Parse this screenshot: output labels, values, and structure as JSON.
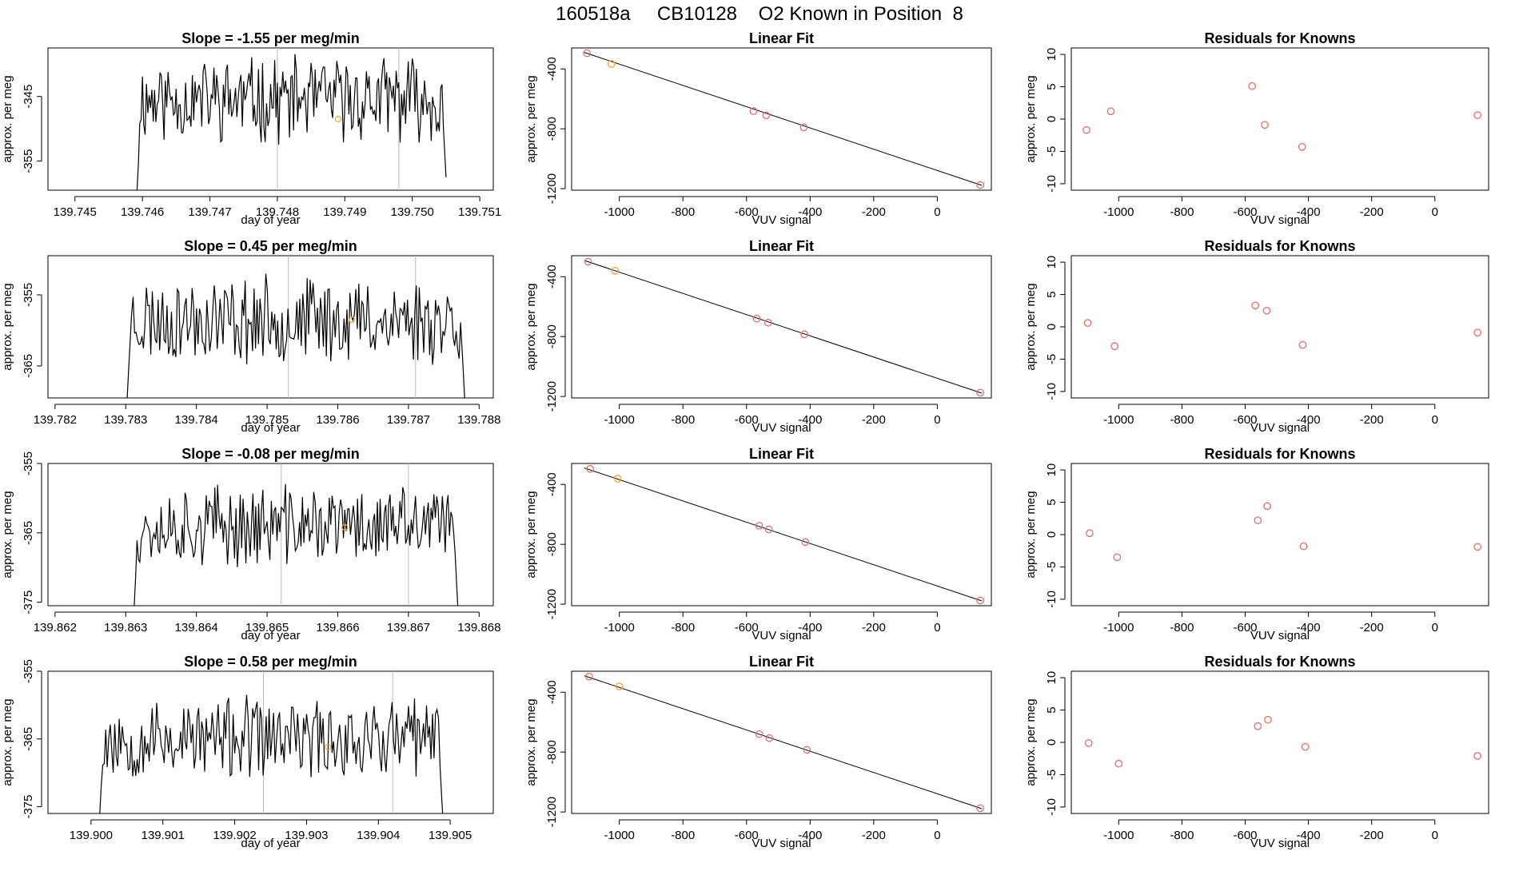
{
  "title": "160518a     CB10128    O2 Known in Position  8",
  "colors": {
    "line": "#000000",
    "known_point": "#e07070",
    "highlight_point": "#f2a33a",
    "marker_line": "#bbbbbb",
    "fit_line": "#000000"
  },
  "chart_data": [
    {
      "type": "line",
      "row": 1,
      "title": "Slope =  -1.55  per meg/min",
      "xlabel": "day of year",
      "ylabel": "approx. per meg",
      "xlim": [
        139.7446,
        139.7512
      ],
      "ylim": [
        -359.5,
        -337.5
      ],
      "xticks": [
        139.745,
        139.746,
        139.747,
        139.748,
        139.749,
        139.75,
        139.751
      ],
      "xtick_labels": [
        "139.745",
        "139.746",
        "139.747",
        "139.748",
        "139.749",
        "139.750",
        "139.751"
      ],
      "yticks": [
        -355,
        -345
      ],
      "ytick_labels": [
        "-355",
        "-345"
      ],
      "x_start": 139.7459,
      "x_end": 139.7505,
      "y_center": -345.5,
      "y_amp": 5.6,
      "seed": 11,
      "vlines": [
        139.748,
        139.7498
      ],
      "highlight_point": {
        "x": 139.7489,
        "y": -348.5
      }
    },
    {
      "type": "line",
      "row": 2,
      "title": "Slope =  0.45  per meg/min",
      "xlabel": "day of year",
      "ylabel": "approx. per meg",
      "xlim": [
        139.7819,
        139.7882
      ],
      "ylim": [
        -369.5,
        -349.5
      ],
      "xticks": [
        139.782,
        139.783,
        139.784,
        139.785,
        139.786,
        139.787,
        139.788
      ],
      "xtick_labels": [
        "139.782",
        "139.783",
        "139.784",
        "139.785",
        "139.786",
        "139.787",
        "139.788"
      ],
      "yticks": [
        -365,
        -355
      ],
      "ytick_labels": [
        "-365",
        "-355"
      ],
      "x_start": 139.783,
      "x_end": 139.7878,
      "y_center": -358.5,
      "y_amp": 5.2,
      "seed": 23,
      "vlines": [
        139.7853,
        139.7871
      ],
      "highlight_point": {
        "x": 139.7862,
        "y": -358.5
      }
    },
    {
      "type": "line",
      "row": 3,
      "title": "Slope =  -0.08  per meg/min",
      "xlabel": "day of year",
      "ylabel": "approx. per meg",
      "xlim": [
        139.8619,
        139.8682
      ],
      "ylim": [
        -375.5,
        -355.0
      ],
      "xticks": [
        139.862,
        139.863,
        139.864,
        139.865,
        139.866,
        139.867,
        139.868
      ],
      "xtick_labels": [
        "139.862",
        "139.863",
        "139.864",
        "139.865",
        "139.866",
        "139.867",
        "139.868"
      ],
      "yticks": [
        -375,
        -365,
        -355
      ],
      "ytick_labels": [
        "-375",
        "-365",
        "-355"
      ],
      "x_start": 139.8631,
      "x_end": 139.8677,
      "y_center": -364.0,
      "y_amp": 5.0,
      "seed": 37,
      "vlines": [
        139.8652,
        139.867
      ],
      "highlight_point": {
        "x": 139.8661,
        "y": -364.2
      }
    },
    {
      "type": "line",
      "row": 4,
      "title": "Slope =  0.58  per meg/min",
      "xlabel": "day of year",
      "ylabel": "approx. per meg",
      "xlim": [
        139.8994,
        139.9056
      ],
      "ylim": [
        -376.0,
        -355.0
      ],
      "xticks": [
        139.9,
        139.901,
        139.902,
        139.903,
        139.904,
        139.905
      ],
      "xtick_labels": [
        "139.900",
        "139.901",
        "139.902",
        "139.903",
        "139.904",
        "139.905"
      ],
      "yticks": [
        -375,
        -365,
        -355
      ],
      "ytick_labels": [
        "-375",
        "-365",
        "-355"
      ],
      "x_start": 139.9001,
      "x_end": 139.9049,
      "y_center": -365.0,
      "y_amp": 5.2,
      "seed": 53,
      "vlines": [
        139.9024,
        139.9042
      ],
      "highlight_point": {
        "x": 139.9033,
        "y": -366.2
      }
    },
    {
      "type": "scatter",
      "row": 1,
      "title": "Linear Fit",
      "xlabel": "VUV signal",
      "ylabel": "approx. per meg",
      "xlim": [
        -1150,
        170
      ],
      "ylim": [
        -1210,
        -260
      ],
      "xticks": [
        -1000,
        -800,
        -600,
        -400,
        -200,
        0
      ],
      "xtick_labels": [
        "-1000",
        "-800",
        "-600",
        "-400",
        "-200",
        "0"
      ],
      "yticks": [
        -1200,
        -800,
        -400
      ],
      "ytick_labels": [
        "-1200",
        "-800",
        "-400"
      ],
      "x": [
        -1102,
        -1025,
        -578,
        -538,
        -420,
        135
      ],
      "y": [
        -295,
        -367,
        -682,
        -710,
        -790,
        -1175
      ],
      "highlight_index": 1,
      "fit": {
        "x": [
          -1110,
          140
        ],
        "y": [
          -290,
          -1178
        ]
      }
    },
    {
      "type": "scatter",
      "row": 2,
      "title": "Linear Fit",
      "xlabel": "VUV signal",
      "ylabel": "approx. per meg",
      "xlim": [
        -1150,
        170
      ],
      "ylim": [
        -1210,
        -260
      ],
      "xticks": [
        -1000,
        -800,
        -600,
        -400,
        -200,
        0
      ],
      "xtick_labels": [
        "-1000",
        "-800",
        "-600",
        "-400",
        "-200",
        "0"
      ],
      "yticks": [
        -1200,
        -800,
        -400
      ],
      "ytick_labels": [
        "-1200",
        "-800",
        "-400"
      ],
      "x": [
        -1098,
        -1013,
        -568,
        -532,
        -418,
        135
      ],
      "y": [
        -300,
        -360,
        -680,
        -707,
        -785,
        -1175
      ],
      "highlight_index": 1,
      "fit": {
        "x": [
          -1110,
          140
        ],
        "y": [
          -292,
          -1178
        ]
      }
    },
    {
      "type": "scatter",
      "row": 3,
      "title": "Linear Fit",
      "xlabel": "VUV signal",
      "ylabel": "approx. per meg",
      "xlim": [
        -1150,
        170
      ],
      "ylim": [
        -1210,
        -260
      ],
      "xticks": [
        -1000,
        -800,
        -600,
        -400,
        -200,
        0
      ],
      "xtick_labels": [
        "-1000",
        "-800",
        "-600",
        "-400",
        "-200",
        "0"
      ],
      "yticks": [
        -1200,
        -800,
        -400
      ],
      "ytick_labels": [
        "-1200",
        "-800",
        "-400"
      ],
      "x": [
        -1092,
        -1005,
        -560,
        -530,
        -415,
        135
      ],
      "y": [
        -296,
        -362,
        -676,
        -700,
        -785,
        -1175
      ],
      "highlight_index": 1,
      "fit": {
        "x": [
          -1110,
          140
        ],
        "y": [
          -290,
          -1178
        ]
      }
    },
    {
      "type": "scatter",
      "row": 4,
      "title": "Linear Fit",
      "xlabel": "VUV signal",
      "ylabel": "approx. per meg",
      "xlim": [
        -1150,
        170
      ],
      "ylim": [
        -1210,
        -260
      ],
      "xticks": [
        -1000,
        -800,
        -600,
        -400,
        -200,
        0
      ],
      "xtick_labels": [
        "-1000",
        "-800",
        "-600",
        "-400",
        "-200",
        "0"
      ],
      "yticks": [
        -1200,
        -800,
        -400
      ],
      "ytick_labels": [
        "-1200",
        "-800",
        "-400"
      ],
      "x": [
        -1095,
        -1000,
        -560,
        -528,
        -410,
        135
      ],
      "y": [
        -296,
        -362,
        -680,
        -707,
        -785,
        -1175
      ],
      "highlight_index": 1,
      "fit": {
        "x": [
          -1110,
          140
        ],
        "y": [
          -290,
          -1178
        ]
      }
    },
    {
      "type": "scatter",
      "row": 1,
      "title": "Residuals for Knowns",
      "xlabel": "VUV signal",
      "ylabel": "approx. per meg",
      "xlim": [
        -1150,
        170
      ],
      "ylim": [
        -11,
        11
      ],
      "xticks": [
        -1000,
        -800,
        -600,
        -400,
        -200,
        0
      ],
      "xtick_labels": [
        "-1000",
        "-800",
        "-600",
        "-400",
        "-200",
        "0"
      ],
      "yticks": [
        -10,
        -5,
        0,
        5,
        10
      ],
      "ytick_labels": [
        "-10",
        "-5",
        "0",
        "5",
        "10"
      ],
      "x": [
        -1102,
        -1025,
        -578,
        -538,
        -420,
        135
      ],
      "y": [
        -1.7,
        1.2,
        5.1,
        -0.9,
        -4.3,
        0.6
      ]
    },
    {
      "type": "scatter",
      "row": 2,
      "title": "Residuals for Knowns",
      "xlabel": "VUV signal",
      "ylabel": "approx. per meg",
      "xlim": [
        -1150,
        170
      ],
      "ylim": [
        -11,
        11
      ],
      "xticks": [
        -1000,
        -800,
        -600,
        -400,
        -200,
        0
      ],
      "xtick_labels": [
        "-1000",
        "-800",
        "-600",
        "-400",
        "-200",
        "0"
      ],
      "yticks": [
        -10,
        -5,
        0,
        5,
        10
      ],
      "ytick_labels": [
        "-10",
        "-5",
        "0",
        "5",
        "10"
      ],
      "x": [
        -1098,
        -1013,
        -568,
        -532,
        -418,
        135
      ],
      "y": [
        0.6,
        -3.0,
        3.3,
        2.5,
        -2.8,
        -0.9
      ]
    },
    {
      "type": "scatter",
      "row": 3,
      "title": "Residuals for Knowns",
      "xlabel": "VUV signal",
      "ylabel": "approx. per meg",
      "xlim": [
        -1150,
        170
      ],
      "ylim": [
        -11,
        11
      ],
      "xticks": [
        -1000,
        -800,
        -600,
        -400,
        -200,
        0
      ],
      "xtick_labels": [
        "-1000",
        "-800",
        "-600",
        "-400",
        "-200",
        "0"
      ],
      "yticks": [
        -10,
        -5,
        0,
        5,
        10
      ],
      "ytick_labels": [
        "-10",
        "-5",
        "0",
        "5",
        "10"
      ],
      "x": [
        -1092,
        -1005,
        -560,
        -530,
        -415,
        135
      ],
      "y": [
        0.2,
        -3.5,
        2.2,
        4.4,
        -1.8,
        -1.9
      ]
    },
    {
      "type": "scatter",
      "row": 4,
      "title": "Residuals for Knowns",
      "xlabel": "VUV signal",
      "ylabel": "approx. per meg",
      "xlim": [
        -1150,
        170
      ],
      "ylim": [
        -11,
        11
      ],
      "xticks": [
        -1000,
        -800,
        -600,
        -400,
        -200,
        0
      ],
      "xtick_labels": [
        "-1000",
        "-800",
        "-600",
        "-400",
        "-200",
        "0"
      ],
      "yticks": [
        -10,
        -5,
        0,
        5,
        10
      ],
      "ytick_labels": [
        "-10",
        "-5",
        "0",
        "5",
        "10"
      ],
      "x": [
        -1095,
        -1000,
        -560,
        -528,
        -410,
        135
      ],
      "y": [
        -0.1,
        -3.3,
        2.5,
        3.5,
        -0.7,
        -2.1
      ]
    }
  ]
}
